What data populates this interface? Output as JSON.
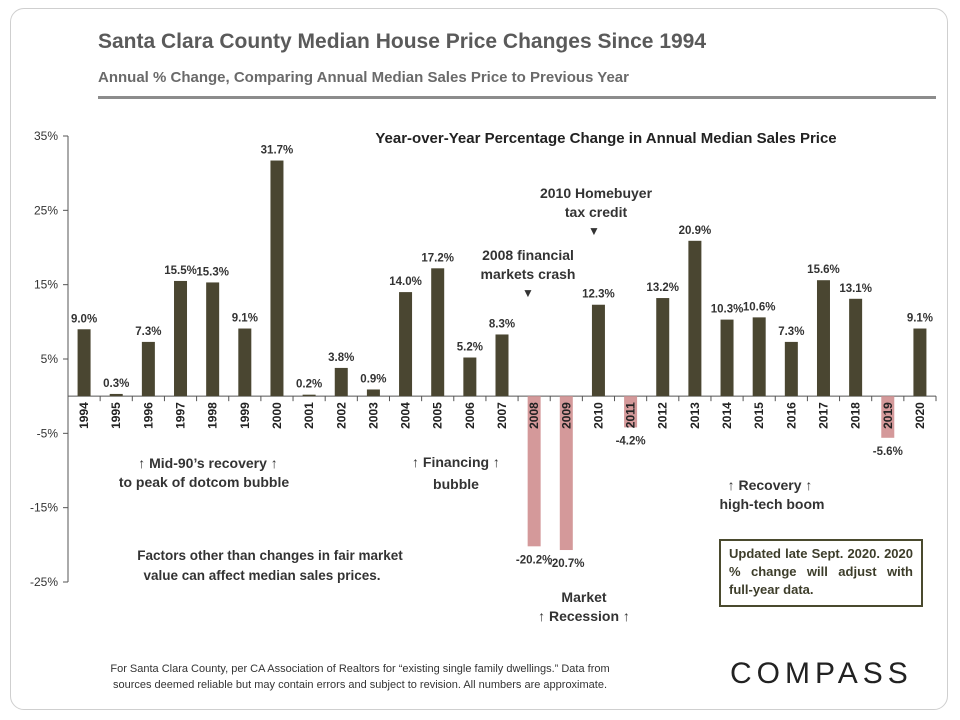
{
  "header": {
    "title": "Santa Clara County Median House Price Changes Since 1994",
    "subtitle": "Annual % Change, Comparing Annual Median Sales Price to Previous Year"
  },
  "chart_data": {
    "type": "bar",
    "title": "Year-over-Year Percentage Change in Annual Median Sales Price",
    "categories": [
      "1994",
      "1995",
      "1996",
      "1997",
      "1998",
      "1999",
      "2000",
      "2001",
      "2002",
      "2003",
      "2004",
      "2005",
      "2006",
      "2007",
      "2008",
      "2009",
      "2010",
      "2011",
      "2012",
      "2013",
      "2014",
      "2015",
      "2016",
      "2017",
      "2018",
      "2019",
      "2020"
    ],
    "values": [
      9.0,
      0.3,
      7.3,
      15.5,
      15.3,
      9.1,
      31.7,
      0.2,
      3.8,
      0.9,
      14.0,
      17.2,
      5.2,
      8.3,
      -20.2,
      -20.7,
      12.3,
      -4.2,
      13.2,
      20.9,
      10.3,
      10.6,
      7.3,
      15.6,
      13.1,
      -5.6,
      9.1
    ],
    "value_labels": [
      "9.0%",
      "0.3%",
      "7.3%",
      "15.5%",
      "15.3%",
      "9.1%",
      "31.7%",
      "0.2%",
      "3.8%",
      "0.9%",
      "14.0%",
      "17.2%",
      "5.2%",
      "8.3%",
      "-20.2%",
      "-20.7%",
      "12.3%",
      "-4.2%",
      "13.2%",
      "20.9%",
      "10.3%",
      "10.6%",
      "7.3%",
      "15.6%",
      "13.1%",
      "-5.6%",
      "9.1%"
    ],
    "ylim": [
      -25,
      35
    ],
    "yticks": [
      35,
      25,
      15,
      5,
      -5,
      -15,
      -25
    ],
    "ytick_labels": [
      "35%",
      "25%",
      "15%",
      "5%",
      "-5%",
      "-15%",
      "-25%"
    ],
    "colors": {
      "positive": "#4a4631",
      "negative": "#d4999a"
    },
    "annotations": {
      "mid90s_line1": "↑ Mid-90’s recovery ↑",
      "mid90s_line2": "to peak of dotcom bubble",
      "financing_line1": "↑ Financing ↑",
      "financing_line2": "bubble",
      "crash_line1": "2008 financial",
      "crash_line2": "markets crash",
      "credit_line1": "2010 Homebuyer",
      "credit_line2": "tax credit",
      "recovery_line1": "↑        Recovery        ↑",
      "recovery_line2": "high-tech boom",
      "recession_line1": "Market",
      "recession_line2": "↑  Recession ↑",
      "factors_line1": "Factors other than changes in fair market",
      "factors_line2": "value can affect median sales prices.",
      "arrow_down": "▼"
    }
  },
  "updated_note": "Updated late Sept. 2020. 2020 % change will adjust with full-year data.",
  "footer": {
    "line1": "For Santa Clara County, per CA Association of Realtors for “existing single family dwellings.” Data from",
    "line2": "sources deemed reliable but may contain errors and subject to revision. All numbers are approximate."
  },
  "logo": "COMPASS"
}
